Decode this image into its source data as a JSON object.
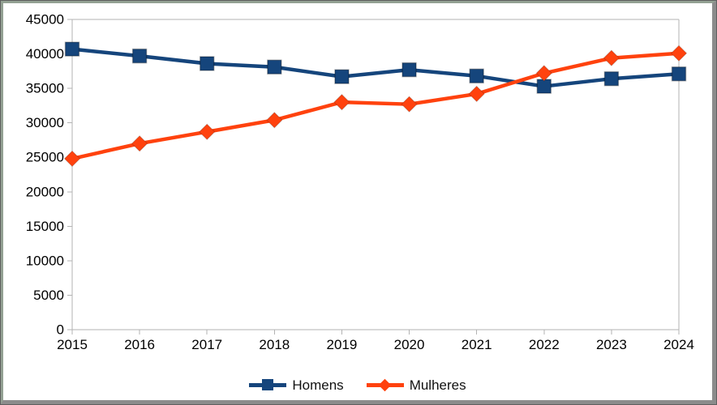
{
  "chart_data": {
    "type": "line",
    "categories": [
      "2015",
      "2016",
      "2017",
      "2018",
      "2019",
      "2020",
      "2021",
      "2022",
      "2023",
      "2024"
    ],
    "series": [
      {
        "name": "Homens",
        "color": "#15457c",
        "marker": "square",
        "values": [
          40700,
          39700,
          38600,
          38100,
          36700,
          37700,
          36800,
          35300,
          36400,
          37100
        ]
      },
      {
        "name": "Mulheres",
        "color": "#ff420e",
        "marker": "diamond",
        "values": [
          24800,
          27000,
          28700,
          30400,
          33000,
          32700,
          34200,
          37200,
          39400,
          40100
        ]
      }
    ],
    "title": "",
    "xlabel": "",
    "ylabel": "",
    "ylim": [
      0,
      45000
    ],
    "yticks": [
      0,
      5000,
      10000,
      15000,
      20000,
      25000,
      30000,
      35000,
      40000,
      45000
    ],
    "grid": false,
    "legend_position": "bottom",
    "axis_color": "#b3b3b3",
    "text_color": "#000000"
  }
}
